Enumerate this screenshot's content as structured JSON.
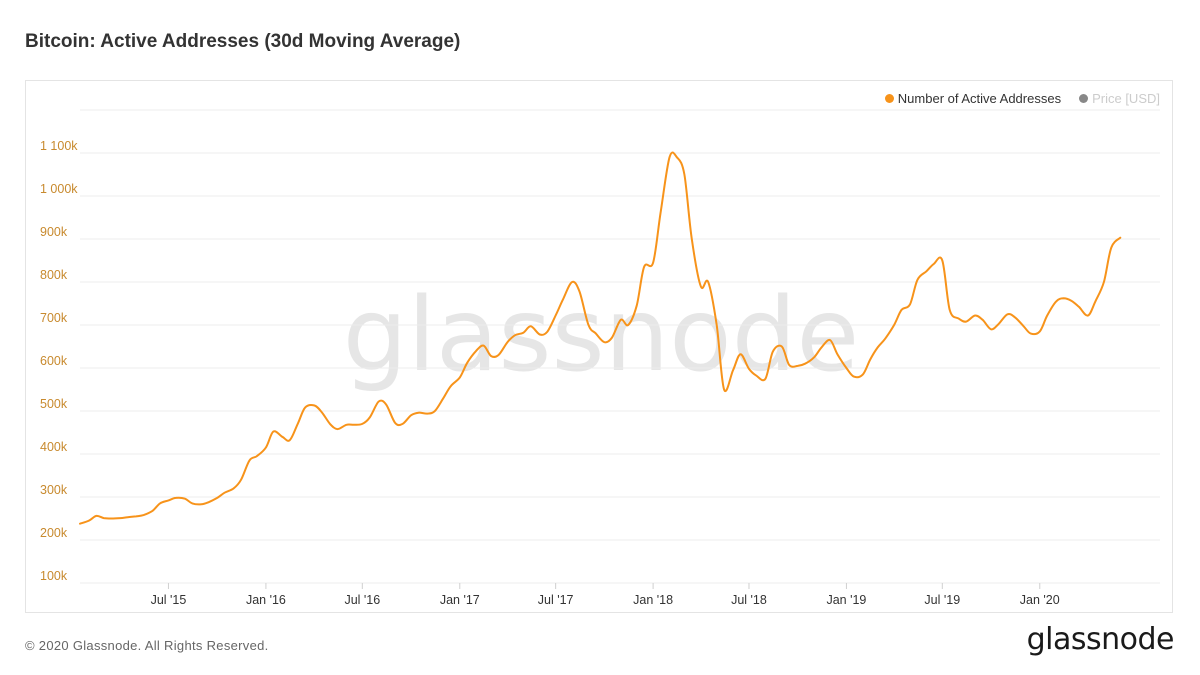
{
  "header": {
    "title": "Bitcoin: Active Addresses (30d Moving Average)"
  },
  "footer": {
    "copyright": "© 2020 Glassnode. All Rights Reserved.",
    "brand": "glassnode"
  },
  "watermark": "glassnode",
  "colors": {
    "series": "#f7931a",
    "tick_label": "#c88a2e",
    "grid": "#ececec",
    "inactive_dot": "#888888",
    "watermark": "#e6e6e6"
  },
  "legend": {
    "items": [
      {
        "label": "Number of Active Addresses",
        "color": "#f7931a",
        "active": true
      },
      {
        "label": "Price [USD]",
        "color": "#888888",
        "active": false
      }
    ]
  },
  "chart_data": {
    "type": "line",
    "title": "Bitcoin: Active Addresses (30d Moving Average)",
    "xlabel": "",
    "ylabel": "",
    "grid": true,
    "legend_position": "top-right",
    "x_range": [
      "2015-01-15",
      "2020-08-15"
    ],
    "ylim": [
      100000,
      1200000
    ],
    "y_ticks": [
      {
        "value": 100000,
        "label": "100k"
      },
      {
        "value": 200000,
        "label": "200k"
      },
      {
        "value": 300000,
        "label": "300k"
      },
      {
        "value": 400000,
        "label": "400k"
      },
      {
        "value": 500000,
        "label": "500k"
      },
      {
        "value": 600000,
        "label": "600k"
      },
      {
        "value": 700000,
        "label": "700k"
      },
      {
        "value": 800000,
        "label": "800k"
      },
      {
        "value": 900000,
        "label": "900k"
      },
      {
        "value": 1000000,
        "label": "1 000k"
      },
      {
        "value": 1100000,
        "label": "1 100k"
      }
    ],
    "x_ticks": [
      {
        "date": "2015-07-01",
        "label": "Jul '15"
      },
      {
        "date": "2016-01-01",
        "label": "Jan '16"
      },
      {
        "date": "2016-07-01",
        "label": "Jul '16"
      },
      {
        "date": "2017-01-01",
        "label": "Jan '17"
      },
      {
        "date": "2017-07-01",
        "label": "Jul '17"
      },
      {
        "date": "2018-01-01",
        "label": "Jan '18"
      },
      {
        "date": "2018-07-01",
        "label": "Jul '18"
      },
      {
        "date": "2019-01-01",
        "label": "Jan '19"
      },
      {
        "date": "2019-07-01",
        "label": "Jul '19"
      },
      {
        "date": "2020-01-01",
        "label": "Jan '20"
      }
    ],
    "series": [
      {
        "name": "Number of Active Addresses",
        "color": "#f7931a",
        "points": [
          [
            "2015-01-15",
            238000
          ],
          [
            "2015-02-01",
            245000
          ],
          [
            "2015-02-15",
            256000
          ],
          [
            "2015-03-01",
            251000
          ],
          [
            "2015-03-15",
            250000
          ],
          [
            "2015-04-01",
            251000
          ],
          [
            "2015-04-15",
            253000
          ],
          [
            "2015-05-01",
            255000
          ],
          [
            "2015-05-15",
            258000
          ],
          [
            "2015-06-01",
            268000
          ],
          [
            "2015-06-15",
            285000
          ],
          [
            "2015-07-01",
            292000
          ],
          [
            "2015-07-15",
            298000
          ],
          [
            "2015-08-01",
            296000
          ],
          [
            "2015-08-15",
            285000
          ],
          [
            "2015-09-01",
            283000
          ],
          [
            "2015-09-15",
            288000
          ],
          [
            "2015-10-01",
            298000
          ],
          [
            "2015-10-15",
            310000
          ],
          [
            "2015-11-01",
            320000
          ],
          [
            "2015-11-15",
            340000
          ],
          [
            "2015-12-01",
            385000
          ],
          [
            "2015-12-15",
            395000
          ],
          [
            "2016-01-01",
            415000
          ],
          [
            "2016-01-15",
            452000
          ],
          [
            "2016-02-01",
            440000
          ],
          [
            "2016-02-15",
            432000
          ],
          [
            "2016-03-01",
            470000
          ],
          [
            "2016-03-15",
            508000
          ],
          [
            "2016-04-01",
            513000
          ],
          [
            "2016-04-15",
            498000
          ],
          [
            "2016-05-01",
            470000
          ],
          [
            "2016-05-15",
            458000
          ],
          [
            "2016-06-01",
            468000
          ],
          [
            "2016-06-15",
            468000
          ],
          [
            "2016-07-01",
            470000
          ],
          [
            "2016-07-15",
            485000
          ],
          [
            "2016-08-01",
            522000
          ],
          [
            "2016-08-15",
            515000
          ],
          [
            "2016-09-01",
            472000
          ],
          [
            "2016-09-15",
            470000
          ],
          [
            "2016-10-01",
            490000
          ],
          [
            "2016-10-15",
            496000
          ],
          [
            "2016-11-01",
            494000
          ],
          [
            "2016-11-15",
            500000
          ],
          [
            "2016-12-01",
            530000
          ],
          [
            "2016-12-15",
            558000
          ],
          [
            "2017-01-01",
            578000
          ],
          [
            "2017-01-15",
            612000
          ],
          [
            "2017-02-01",
            640000
          ],
          [
            "2017-02-15",
            652000
          ],
          [
            "2017-03-01",
            628000
          ],
          [
            "2017-03-15",
            630000
          ],
          [
            "2017-04-01",
            660000
          ],
          [
            "2017-04-15",
            676000
          ],
          [
            "2017-05-01",
            682000
          ],
          [
            "2017-05-15",
            697000
          ],
          [
            "2017-06-01",
            678000
          ],
          [
            "2017-06-15",
            684000
          ],
          [
            "2017-07-01",
            722000
          ],
          [
            "2017-07-15",
            760000
          ],
          [
            "2017-08-01",
            800000
          ],
          [
            "2017-08-15",
            778000
          ],
          [
            "2017-09-01",
            700000
          ],
          [
            "2017-09-15",
            680000
          ],
          [
            "2017-10-01",
            660000
          ],
          [
            "2017-10-15",
            670000
          ],
          [
            "2017-11-01",
            712000
          ],
          [
            "2017-11-15",
            700000
          ],
          [
            "2017-12-01",
            745000
          ],
          [
            "2017-12-15",
            835000
          ],
          [
            "2018-01-01",
            845000
          ],
          [
            "2018-01-15",
            960000
          ],
          [
            "2018-02-01",
            1090000
          ],
          [
            "2018-02-15",
            1090000
          ],
          [
            "2018-03-01",
            1050000
          ],
          [
            "2018-03-15",
            900000
          ],
          [
            "2018-04-01",
            790000
          ],
          [
            "2018-04-15",
            800000
          ],
          [
            "2018-05-01",
            700000
          ],
          [
            "2018-05-15",
            550000
          ],
          [
            "2018-06-01",
            595000
          ],
          [
            "2018-06-15",
            632000
          ],
          [
            "2018-07-01",
            598000
          ],
          [
            "2018-07-15",
            582000
          ],
          [
            "2018-08-01",
            575000
          ],
          [
            "2018-08-15",
            638000
          ],
          [
            "2018-09-01",
            650000
          ],
          [
            "2018-09-15",
            607000
          ],
          [
            "2018-10-01",
            605000
          ],
          [
            "2018-10-15",
            610000
          ],
          [
            "2018-11-01",
            625000
          ],
          [
            "2018-11-15",
            648000
          ],
          [
            "2018-12-01",
            665000
          ],
          [
            "2018-12-15",
            632000
          ],
          [
            "2019-01-01",
            600000
          ],
          [
            "2019-01-15",
            580000
          ],
          [
            "2019-02-01",
            585000
          ],
          [
            "2019-02-15",
            620000
          ],
          [
            "2019-03-01",
            648000
          ],
          [
            "2019-03-15",
            668000
          ],
          [
            "2019-04-01",
            700000
          ],
          [
            "2019-04-15",
            735000
          ],
          [
            "2019-05-01",
            748000
          ],
          [
            "2019-05-15",
            805000
          ],
          [
            "2019-06-01",
            825000
          ],
          [
            "2019-06-15",
            842000
          ],
          [
            "2019-07-01",
            850000
          ],
          [
            "2019-07-15",
            735000
          ],
          [
            "2019-08-01",
            715000
          ],
          [
            "2019-08-15",
            708000
          ],
          [
            "2019-09-01",
            722000
          ],
          [
            "2019-09-15",
            712000
          ],
          [
            "2019-10-01",
            690000
          ],
          [
            "2019-10-15",
            702000
          ],
          [
            "2019-11-01",
            725000
          ],
          [
            "2019-11-15",
            718000
          ],
          [
            "2019-12-01",
            698000
          ],
          [
            "2019-12-15",
            680000
          ],
          [
            "2020-01-01",
            685000
          ],
          [
            "2020-01-15",
            722000
          ],
          [
            "2020-02-01",
            755000
          ],
          [
            "2020-02-15",
            762000
          ],
          [
            "2020-03-01",
            756000
          ],
          [
            "2020-03-15",
            742000
          ],
          [
            "2020-04-01",
            722000
          ],
          [
            "2020-04-15",
            755000
          ],
          [
            "2020-05-01",
            800000
          ],
          [
            "2020-05-15",
            880000
          ],
          [
            "2020-06-01",
            903000
          ]
        ]
      }
    ]
  }
}
